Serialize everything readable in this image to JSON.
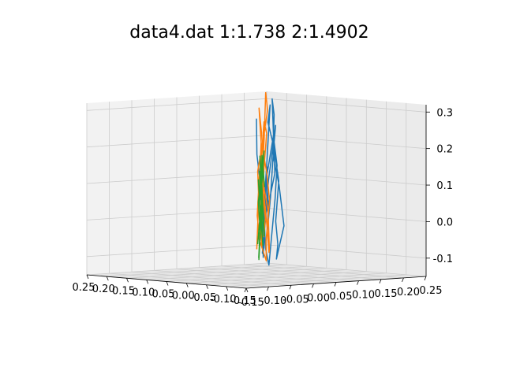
{
  "chart_data": {
    "type": "line",
    "title": "data4.dat    1:1.738  2:1.4902",
    "xlabel": "",
    "ylabel": "",
    "zlabel": "",
    "xlim": [
      -0.15,
      0.25
    ],
    "ylim": [
      -0.15,
      0.25
    ],
    "zlim": [
      -0.15,
      0.32
    ],
    "x_ticks": [
      "-0.15",
      "-0.10",
      "-0.05",
      "0.00",
      "0.05",
      "0.10",
      "0.15",
      "0.20",
      "0.25"
    ],
    "y_ticks": [
      "-0.15",
      "-0.10",
      "-0.05",
      "0.00",
      "0.05",
      "0.10",
      "0.15",
      "0.20",
      "0.25"
    ],
    "z_ticks": [
      "-0.1",
      "0.0",
      "0.1",
      "0.2",
      "0.3"
    ],
    "grid": true,
    "series": [
      {
        "color": "#1f77b4",
        "points": [
          [
            0.05,
            0.05,
            0.28
          ],
          [
            0.06,
            0.06,
            0.18
          ],
          [
            0.0,
            0.02,
            0.05
          ],
          [
            -0.05,
            -0.02,
            0.0
          ],
          [
            -0.08,
            -0.05,
            -0.08
          ],
          [
            -0.02,
            0.0,
            0.1
          ],
          [
            0.02,
            0.05,
            0.02
          ],
          [
            0.08,
            0.1,
            0.12
          ],
          [
            0.12,
            0.15,
            0.22
          ],
          [
            0.18,
            0.2,
            0.31
          ],
          [
            0.22,
            0.24,
            0.26
          ],
          [
            0.2,
            0.22,
            0.15
          ],
          [
            0.14,
            0.18,
            0.08
          ],
          [
            0.06,
            0.12,
            -0.02
          ],
          [
            0.0,
            0.05,
            -0.1
          ],
          [
            -0.06,
            0.0,
            -0.05
          ],
          [
            -0.1,
            -0.04,
            0.02
          ],
          [
            -0.04,
            0.02,
            0.12
          ],
          [
            0.04,
            0.08,
            0.2
          ],
          [
            0.1,
            0.12,
            0.26
          ],
          [
            0.14,
            0.16,
            0.3
          ],
          [
            0.08,
            0.1,
            0.16
          ],
          [
            0.02,
            0.04,
            0.04
          ],
          [
            -0.04,
            -0.01,
            -0.06
          ],
          [
            0.03,
            0.06,
            -0.12
          ],
          [
            0.09,
            0.12,
            -0.04
          ],
          [
            0.15,
            0.18,
            0.04
          ],
          [
            0.1,
            0.14,
            0.14
          ],
          [
            0.04,
            0.08,
            0.22
          ],
          [
            -0.03,
            0.02,
            0.14
          ],
          [
            -0.07,
            -0.03,
            0.06
          ],
          [
            0.0,
            0.03,
            -0.02
          ],
          [
            0.06,
            0.09,
            0.06
          ],
          [
            0.12,
            0.15,
            0.18
          ],
          [
            0.16,
            0.19,
            0.24
          ],
          [
            0.11,
            0.13,
            0.1
          ],
          [
            0.05,
            0.07,
            0.0
          ],
          [
            -0.01,
            0.01,
            -0.08
          ],
          [
            0.04,
            0.06,
            0.03
          ],
          [
            0.09,
            0.11,
            0.14
          ]
        ]
      },
      {
        "color": "#ff7f0e",
        "points": [
          [
            -0.12,
            -0.1,
            -0.05
          ],
          [
            -0.08,
            -0.06,
            0.08
          ],
          [
            -0.1,
            -0.08,
            0.16
          ],
          [
            -0.04,
            -0.02,
            0.2
          ],
          [
            -0.06,
            -0.04,
            0.06
          ],
          [
            -0.02,
            0.0,
            -0.06
          ],
          [
            0.02,
            0.03,
            0.1
          ],
          [
            0.06,
            0.07,
            0.24
          ],
          [
            0.1,
            0.1,
            0.3
          ],
          [
            0.14,
            0.14,
            0.2
          ],
          [
            0.08,
            0.09,
            0.06
          ],
          [
            0.02,
            0.04,
            -0.04
          ],
          [
            -0.04,
            -0.01,
            0.02
          ],
          [
            0.04,
            0.05,
            0.14
          ],
          [
            0.1,
            0.11,
            0.22
          ],
          [
            0.18,
            0.19,
            0.28
          ],
          [
            0.23,
            0.23,
            0.32
          ],
          [
            0.2,
            0.2,
            0.2
          ],
          [
            0.16,
            0.16,
            0.1
          ],
          [
            0.1,
            0.12,
            0.02
          ],
          [
            0.04,
            0.07,
            -0.08
          ],
          [
            0.12,
            0.14,
            -0.1
          ],
          [
            0.17,
            0.18,
            -0.04
          ],
          [
            0.12,
            0.13,
            0.04
          ],
          [
            0.06,
            0.07,
            0.12
          ],
          [
            0.0,
            0.02,
            0.04
          ],
          [
            -0.06,
            -0.04,
            -0.04
          ],
          [
            -0.11,
            -0.09,
            0.04
          ],
          [
            -0.07,
            -0.05,
            0.14
          ],
          [
            -0.01,
            0.01,
            0.22
          ],
          [
            0.05,
            0.06,
            0.16
          ],
          [
            0.11,
            0.12,
            0.26
          ],
          [
            0.16,
            0.17,
            0.22
          ],
          [
            0.08,
            0.09,
            0.08
          ],
          [
            0.01,
            0.03,
            0.0
          ],
          [
            -0.05,
            -0.03,
            0.1
          ],
          [
            0.02,
            0.04,
            0.18
          ],
          [
            0.08,
            0.1,
            0.12
          ],
          [
            0.13,
            0.15,
            0.04
          ],
          [
            0.06,
            0.08,
            -0.06
          ],
          [
            -0.02,
            0.01,
            -0.1
          ],
          [
            -0.09,
            -0.07,
            -0.02
          ]
        ]
      },
      {
        "color": "#2ca02c",
        "points": [
          [
            -0.1,
            -0.08,
            -0.04
          ],
          [
            -0.05,
            -0.03,
            0.04
          ],
          [
            0.0,
            0.01,
            0.12
          ],
          [
            0.04,
            0.05,
            0.06
          ],
          [
            0.08,
            0.09,
            0.14
          ],
          [
            0.12,
            0.13,
            0.08
          ],
          [
            0.16,
            0.16,
            0.16
          ],
          [
            0.14,
            0.14,
            0.06
          ],
          [
            0.1,
            0.11,
            -0.02
          ],
          [
            0.05,
            0.06,
            0.04
          ],
          [
            0.0,
            0.02,
            -0.06
          ],
          [
            -0.04,
            -0.02,
            0.02
          ],
          [
            -0.08,
            -0.06,
            -0.08
          ],
          [
            -0.02,
            0.0,
            0.08
          ],
          [
            0.03,
            0.04,
            0.18
          ],
          [
            0.07,
            0.08,
            0.1
          ],
          [
            0.11,
            0.12,
            0.18
          ],
          [
            0.15,
            0.15,
            0.1
          ],
          [
            0.09,
            0.1,
            0.02
          ],
          [
            0.03,
            0.05,
            -0.04
          ],
          [
            -0.03,
            -0.01,
            0.06
          ],
          [
            0.02,
            0.03,
            0.14
          ],
          [
            0.06,
            0.07,
            0.04
          ],
          [
            0.01,
            0.02,
            -0.1
          ],
          [
            -0.05,
            -0.03,
            -0.02
          ],
          [
            0.0,
            0.01,
            0.06
          ],
          [
            0.06,
            0.07,
            0.12
          ]
        ]
      }
    ]
  }
}
